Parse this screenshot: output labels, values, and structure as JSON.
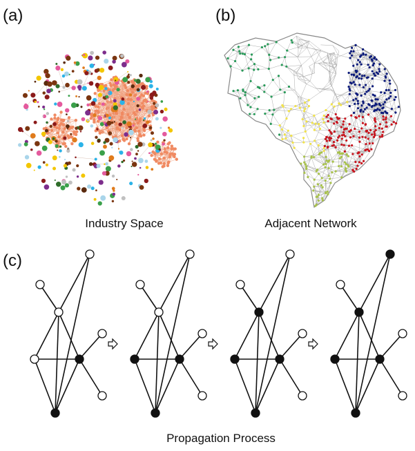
{
  "panels": [
    {
      "label": "(a)",
      "caption": "Industry Space"
    },
    {
      "label": "(b)",
      "caption": "Adjacent Network"
    },
    {
      "label": "(c)",
      "caption": "Propagation Process"
    }
  ]
}
